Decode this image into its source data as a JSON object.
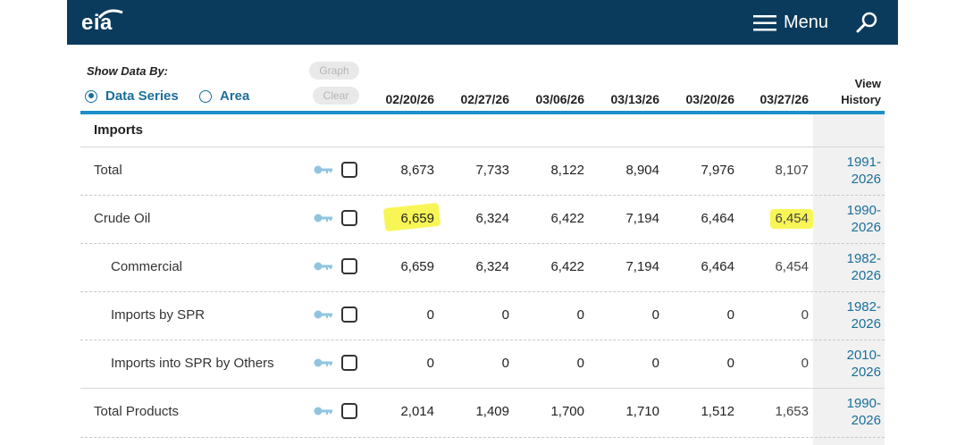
{
  "header": {
    "logo_text": "eia",
    "menu_label": "Menu"
  },
  "controls": {
    "show_data_by_label": "Show Data By:",
    "options": [
      {
        "label": "Data Series",
        "selected": true
      },
      {
        "label": "Area",
        "selected": false
      }
    ],
    "graph_button": "Graph",
    "clear_button": "Clear"
  },
  "table": {
    "columns": [
      "02/20/26",
      "02/27/26",
      "03/06/26",
      "03/13/26",
      "03/20/26",
      "03/27/26"
    ],
    "view_history_line1": "View",
    "view_history_line2": "History",
    "section": "Imports",
    "rows": [
      {
        "label": "Total",
        "values": [
          "8,673",
          "7,733",
          "8,122",
          "8,904",
          "7,976",
          "8,107"
        ],
        "history_line1": "1991-",
        "history_line2": "2026"
      },
      {
        "label": "Crude Oil",
        "values": [
          "6,659",
          "6,324",
          "6,422",
          "7,194",
          "6,464",
          "6,454"
        ],
        "history_line1": "1990-",
        "history_line2": "2026"
      },
      {
        "label": "Commercial",
        "values": [
          "6,659",
          "6,324",
          "6,422",
          "7,194",
          "6,464",
          "6,454"
        ],
        "history_line1": "1982-",
        "history_line2": "2026"
      },
      {
        "label": "Imports by SPR",
        "values": [
          "0",
          "0",
          "0",
          "0",
          "0",
          "0"
        ],
        "history_line1": "1982-",
        "history_line2": "2026"
      },
      {
        "label": "Imports into SPR by Others",
        "values": [
          "0",
          "0",
          "0",
          "0",
          "0",
          "0"
        ],
        "history_line1": "2010-",
        "history_line2": "2026"
      },
      {
        "label": "Total Products",
        "values": [
          "2,014",
          "1,409",
          "1,700",
          "1,710",
          "1,512",
          "1,653"
        ],
        "history_line1": "1990-",
        "history_line2": "2026"
      }
    ]
  },
  "colors": {
    "header_bg": "#0b3b5c",
    "accent": "#1b8fc8",
    "link": "#1b6f9a",
    "highlight": "#f7f438"
  },
  "icons": [
    "menu-icon",
    "search-icon",
    "key-icon",
    "checkbox"
  ]
}
